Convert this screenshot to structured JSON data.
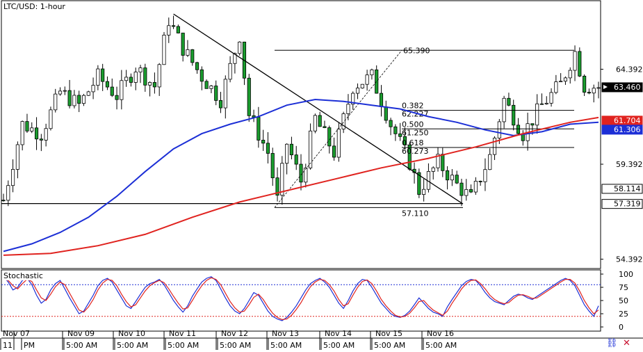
{
  "chart_data": [
    {
      "type": "candlestick",
      "title": "LTC/USD: 1-hour",
      "y_ticks": [
        64.392,
        59.392,
        54.392
      ],
      "ylim": [
        53.9,
        68.0
      ],
      "price_labels": [
        {
          "value": "63.460",
          "color": "#000000",
          "text_color": "#ffffff",
          "price": 63.46
        },
        {
          "value": "61.704",
          "color": "#e0231f",
          "text_color": "#ffffff",
          "price": 61.704
        },
        {
          "value": "61.306",
          "color": "#1c2fd6",
          "text_color": "#ffffff",
          "price": 61.306
        },
        {
          "value": "58.114",
          "color": "#ffffff",
          "text_color": "#000000",
          "price": 58.114
        },
        {
          "value": "57.319",
          "color": "#ffffff",
          "text_color": "#000000",
          "price": 57.319
        }
      ],
      "fibonacci": {
        "high": {
          "label": "65.390",
          "value": 65.39
        },
        "low": {
          "label": "57.110",
          "value": 57.11
        },
        "levels": [
          {
            "ratio": "0.382",
            "value": "62.227",
            "price": 62.227
          },
          {
            "ratio": "0.500",
            "value": "61.250",
            "price": 61.25
          },
          {
            "ratio": "0.618",
            "value": "60.273",
            "price": 60.273
          }
        ]
      },
      "support_line": 57.319,
      "trendline": {
        "from": [
          36,
          67.3
        ],
        "to": [
          137,
          57.3
        ]
      },
      "moving_averages": [
        {
          "color": "#1c2fd6",
          "points": [
            [
              0,
              54.8
            ],
            [
              6,
              55.2
            ],
            [
              12,
              55.8
            ],
            [
              18,
              56.6
            ],
            [
              24,
              57.7
            ],
            [
              30,
              59.0
            ],
            [
              36,
              60.2
            ],
            [
              42,
              61.0
            ],
            [
              48,
              61.5
            ],
            [
              54,
              61.9
            ],
            [
              60,
              62.5
            ],
            [
              66,
              62.8
            ],
            [
              72,
              62.7
            ],
            [
              78,
              62.5
            ],
            [
              84,
              62.3
            ],
            [
              90,
              61.9
            ],
            [
              96,
              61.6
            ],
            [
              102,
              61.2
            ],
            [
              108,
              60.9
            ],
            [
              114,
              61.1
            ],
            [
              120,
              61.5
            ],
            [
              126,
              61.6
            ]
          ]
        },
        {
          "color": "#e0231f",
          "points": [
            [
              0,
              54.6
            ],
            [
              10,
              54.7
            ],
            [
              20,
              55.1
            ],
            [
              30,
              55.7
            ],
            [
              40,
              56.6
            ],
            [
              50,
              57.4
            ],
            [
              60,
              58.0
            ],
            [
              70,
              58.6
            ],
            [
              80,
              59.2
            ],
            [
              90,
              59.7
            ],
            [
              100,
              60.3
            ],
            [
              110,
              61.0
            ],
            [
              120,
              61.6
            ],
            [
              126,
              61.85
            ]
          ]
        }
      ],
      "bars": 127
    },
    {
      "type": "line",
      "title": "Stochastic",
      "y_ticks": [
        100,
        75,
        50,
        25,
        0
      ],
      "ylim": [
        0,
        100
      ],
      "levels": [
        80,
        20
      ],
      "series": [
        {
          "color": "#1c2fd6",
          "values": [
            95,
            85,
            70,
            75,
            88,
            92,
            80,
            60,
            45,
            52,
            70,
            82,
            88,
            72,
            55,
            40,
            25,
            30,
            45,
            60,
            78,
            88,
            92,
            85,
            70,
            55,
            40,
            35,
            48,
            62,
            75,
            82,
            85,
            90,
            80,
            65,
            50,
            38,
            28,
            40,
            58,
            72,
            85,
            92,
            95,
            88,
            72,
            55,
            40,
            30,
            25,
            35,
            50,
            65,
            60,
            45,
            30,
            20,
            15,
            12,
            18,
            28,
            40,
            55,
            70,
            82,
            88,
            92,
            85,
            75,
            60,
            45,
            35,
            50,
            68,
            82,
            90,
            88,
            75,
            60,
            45,
            35,
            25,
            20,
            18,
            22,
            30,
            42,
            55,
            45,
            35,
            28,
            25,
            20,
            38,
            52,
            65,
            78,
            86,
            90,
            88,
            78,
            65,
            55,
            48,
            45,
            42,
            50,
            58,
            62,
            60,
            55,
            52,
            58,
            64,
            70,
            76,
            82,
            88,
            92,
            88,
            78,
            60,
            42,
            30,
            20,
            40
          ]
        },
        {
          "color": "#e0231f",
          "values": [
            90,
            88,
            78,
            72,
            82,
            90,
            86,
            70,
            55,
            50,
            62,
            76,
            85,
            80,
            64,
            48,
            32,
            28,
            38,
            52,
            70,
            83,
            90,
            88,
            78,
            62,
            48,
            38,
            42,
            55,
            68,
            78,
            84,
            88,
            84,
            72,
            58,
            45,
            34,
            36,
            50,
            65,
            78,
            88,
            93,
            90,
            80,
            64,
            48,
            36,
            28,
            30,
            42,
            56,
            62,
            52,
            38,
            26,
            18,
            14,
            15,
            22,
            33,
            46,
            62,
            76,
            85,
            90,
            88,
            80,
            68,
            52,
            40,
            44,
            60,
            75,
            86,
            89,
            82,
            68,
            52,
            40,
            30,
            22,
            19,
            20,
            26,
            36,
            48,
            50,
            40,
            32,
            27,
            22,
            30,
            45,
            58,
            72,
            82,
            88,
            89,
            82,
            72,
            60,
            52,
            47,
            44,
            46,
            54,
            60,
            61,
            58,
            54,
            55,
            61,
            67,
            73,
            79,
            85,
            90,
            90,
            83,
            68,
            50,
            36,
            25,
            32
          ]
        }
      ]
    }
  ],
  "x_axis": {
    "dates": [
      "Nov 07",
      "Nov 09",
      "Nov 10",
      "Nov 11",
      "Nov 12",
      "Nov 13",
      "Nov 14",
      "Nov 15",
      "Nov 16"
    ],
    "times": [
      "11",
      "PM",
      "5:00 AM",
      "5:00 AM",
      "5:00 AM",
      "5:00 AM",
      "5:00 AM",
      "5:00 AM",
      "5:00 AM",
      "5:00 AM"
    ]
  },
  "icons": [
    "link-icon",
    "close-icon"
  ]
}
